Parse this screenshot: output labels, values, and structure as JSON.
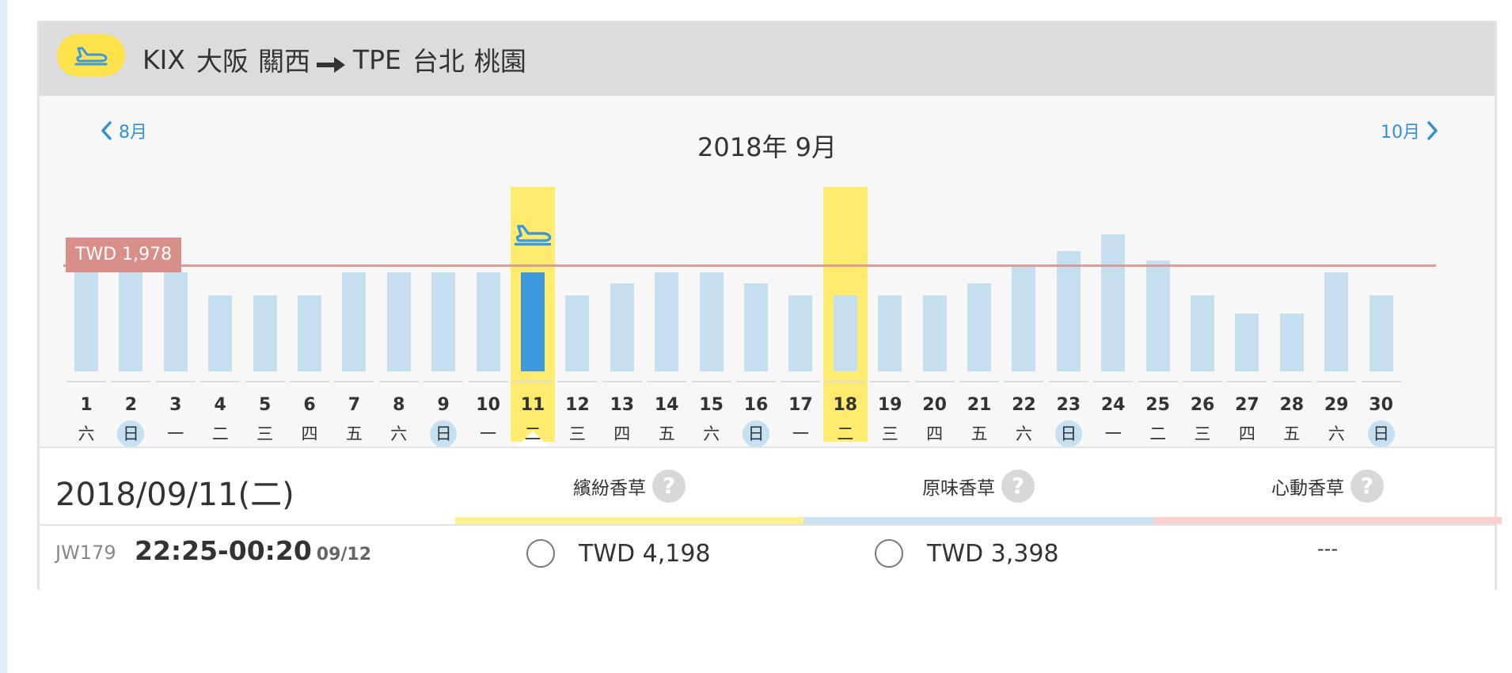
{
  "route": {
    "origin_code": "KIX",
    "origin_city": "大阪",
    "origin_airport": "關西",
    "destination_code": "TPE",
    "destination_city": "台北",
    "destination_airport": "桃園",
    "plane_icon": "plane-icon",
    "arrow_icon": "arrow-right-icon"
  },
  "calendar": {
    "title": "2018年 9月",
    "prev_label": "8月",
    "next_label": "10月",
    "prev_icon": "chevron-left-icon",
    "next_icon": "chevron-right-icon",
    "average_label": "TWD 1,978",
    "selected_day": 11,
    "highlighted_day": 18,
    "colors": {
      "bar": "#c5dfee",
      "bar_selected": "#3d98dc",
      "highlight": "#ffec6e",
      "average": "#df9a94",
      "sunday_badge": "#c5e0f1"
    }
  },
  "chart_data": {
    "type": "bar",
    "title": "2018年 9月",
    "categories": [
      "1",
      "2",
      "3",
      "4",
      "5",
      "6",
      "7",
      "8",
      "9",
      "10",
      "11",
      "12",
      "13",
      "14",
      "15",
      "16",
      "17",
      "18",
      "19",
      "20",
      "21",
      "22",
      "23",
      "24",
      "25",
      "26",
      "27",
      "28",
      "29",
      "30"
    ],
    "weekdays": [
      "六",
      "日",
      "一",
      "二",
      "三",
      "四",
      "五",
      "六",
      "日",
      "一",
      "二",
      "三",
      "四",
      "五",
      "六",
      "日",
      "一",
      "二",
      "三",
      "四",
      "五",
      "六",
      "日",
      "一",
      "二",
      "三",
      "四",
      "五",
      "六",
      "日"
    ],
    "sundays": [
      2,
      9,
      16,
      23,
      30
    ],
    "values": [
      2100,
      1880,
      1880,
      1450,
      1450,
      1450,
      1880,
      1880,
      1880,
      1880,
      1880,
      1450,
      1670,
      1880,
      1880,
      1670,
      1450,
      1450,
      1450,
      1450,
      1670,
      1980,
      2280,
      2600,
      2100,
      1450,
      1100,
      1100,
      1880,
      1450
    ],
    "average": 1978,
    "ylim": [
      0,
      3300
    ],
    "grid": false,
    "legend": "none"
  },
  "details": {
    "selected_date": "2018/09/11(二)",
    "fare_types": [
      {
        "name": "繽紛香草",
        "color": "#fff190"
      },
      {
        "name": "原味香草",
        "color": "#c8e2f1"
      },
      {
        "name": "心動香草",
        "color": "#fbcfcb"
      }
    ],
    "help_glyph": "?",
    "flight": {
      "number": "JW179",
      "time": "22:25-00:20",
      "arrival_date": "09/12",
      "fares": [
        "TWD 4,198",
        "TWD 3,398",
        "---"
      ]
    }
  }
}
